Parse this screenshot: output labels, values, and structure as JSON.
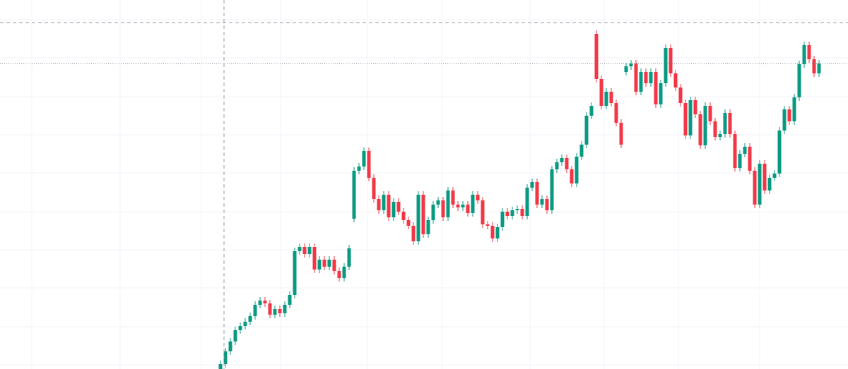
{
  "chart_data": {
    "type": "candlestick",
    "up_color": "#089981",
    "down_color": "#f23645",
    "ylim": [
      7.7,
      60
    ],
    "open": [
      7.7,
      8.4,
      10.2,
      11.6,
      13.2,
      13.8,
      14.4,
      15.2,
      16.8,
      17.4,
      17.0,
      15.4,
      16.2,
      15.6,
      16.8,
      18.2,
      24.4,
      25.0,
      24.0,
      25.0,
      21.8,
      23.2,
      22.2,
      23.2,
      21.6,
      20.6,
      22.2,
      29.0,
      35.8,
      36.4,
      38.6,
      34.8,
      31.8,
      30.2,
      32.4,
      29.2,
      31.4,
      30.0,
      28.8,
      28.0,
      25.8,
      32.4,
      26.8,
      28.8,
      31.0,
      31.6,
      29.2,
      33.0,
      31.0,
      30.6,
      31.0,
      29.8,
      32.4,
      31.6,
      28.2,
      28.0,
      26.2,
      27.8,
      30.0,
      29.4,
      30.2,
      30.4,
      29.4,
      33.4,
      34.2,
      31.0,
      31.8,
      30.2,
      36.0,
      37.0,
      37.6,
      36.0,
      34.0,
      37.8,
      39.5,
      43.6,
      55.2,
      48.8,
      45.0,
      47.0,
      45.4,
      42.6,
      49.8,
      50.6,
      51.0,
      47.0,
      49.8,
      48.2,
      49.8,
      45.2,
      48.2,
      53.2,
      49.6,
      47.6,
      45.4,
      40.8,
      45.8,
      43.8,
      39.4,
      45.0,
      42.8,
      40.6,
      41.0,
      44.0,
      41.0,
      36.2,
      38.2,
      39.2,
      35.8,
      31.0,
      36.8,
      33.0,
      34.8,
      35.4,
      41.5,
      44.5,
      42.8,
      46.2,
      50.9,
      53.6,
      51.6,
      49.6
    ],
    "high": [
      8.9,
      10.7,
      12.1,
      13.7,
      14.3,
      14.9,
      15.7,
      17.3,
      17.9,
      17.9,
      17.5,
      16.7,
      16.7,
      17.3,
      18.7,
      24.9,
      25.5,
      25.5,
      25.5,
      25.5,
      23.7,
      23.7,
      23.7,
      23.7,
      22.1,
      22.7,
      25.3,
      36.3,
      36.9,
      39.1,
      39.1,
      35.3,
      32.3,
      32.9,
      32.9,
      31.9,
      31.9,
      30.5,
      29.3,
      28.5,
      32.9,
      32.9,
      29.3,
      31.5,
      32.1,
      32.1,
      33.5,
      33.5,
      31.5,
      31.5,
      31.5,
      32.9,
      32.9,
      32.1,
      28.7,
      28.5,
      28.3,
      30.5,
      30.5,
      30.7,
      30.9,
      30.9,
      33.9,
      34.7,
      34.7,
      32.3,
      32.3,
      36.5,
      37.5,
      38.1,
      38.1,
      36.5,
      38.3,
      40.0,
      44.1,
      45.5,
      55.7,
      49.3,
      47.5,
      47.5,
      45.9,
      43.1,
      51.1,
      51.5,
      51.5,
      50.3,
      50.3,
      50.3,
      50.3,
      48.7,
      53.7,
      53.7,
      50.1,
      48.1,
      45.9,
      46.3,
      46.3,
      44.3,
      45.5,
      45.5,
      43.3,
      41.5,
      44.5,
      44.5,
      41.5,
      38.7,
      39.7,
      39.7,
      36.3,
      37.3,
      37.3,
      35.3,
      35.9,
      42.0,
      45.0,
      45.0,
      46.7,
      51.4,
      54.1,
      54.1,
      52.1,
      51.5
    ],
    "low": [
      7.2,
      7.9,
      9.7,
      11.1,
      12.7,
      13.3,
      13.9,
      14.7,
      16.3,
      16.5,
      14.9,
      14.9,
      15.1,
      15.1,
      16.3,
      17.7,
      23.9,
      23.5,
      23.5,
      21.3,
      21.3,
      21.7,
      21.7,
      21.1,
      20.1,
      20.1,
      21.7,
      28.5,
      35.3,
      35.9,
      34.3,
      31.3,
      29.7,
      29.7,
      28.7,
      28.7,
      29.5,
      28.3,
      27.5,
      25.3,
      25.3,
      26.3,
      26.3,
      28.3,
      30.5,
      28.7,
      28.7,
      30.5,
      30.1,
      30.1,
      29.3,
      29.3,
      31.1,
      27.7,
      27.5,
      25.7,
      25.7,
      27.3,
      28.9,
      28.9,
      29.7,
      28.9,
      28.9,
      32.9,
      30.5,
      30.5,
      29.7,
      29.7,
      35.5,
      36.5,
      35.5,
      33.5,
      33.5,
      37.3,
      39.0,
      43.1,
      48.3,
      44.5,
      44.5,
      44.9,
      42.1,
      39.0,
      49.3,
      50.1,
      46.5,
      46.5,
      47.7,
      47.7,
      44.7,
      44.7,
      47.7,
      49.1,
      47.1,
      44.9,
      40.3,
      40.3,
      43.3,
      38.9,
      38.9,
      42.3,
      40.1,
      40.1,
      40.5,
      40.5,
      35.7,
      35.7,
      37.7,
      35.3,
      30.5,
      30.5,
      32.5,
      32.5,
      34.3,
      34.9,
      41.0,
      42.3,
      42.3,
      45.7,
      50.4,
      51.1,
      49.1,
      49.1
    ],
    "close": [
      8.4,
      10.2,
      11.6,
      13.2,
      13.8,
      14.4,
      15.2,
      16.8,
      17.4,
      17.0,
      15.4,
      16.2,
      15.6,
      16.8,
      18.2,
      24.4,
      25.0,
      24.0,
      25.0,
      21.8,
      23.2,
      22.2,
      23.2,
      21.6,
      20.6,
      22.2,
      24.8,
      35.8,
      36.4,
      38.6,
      34.8,
      31.8,
      30.2,
      32.4,
      29.2,
      31.4,
      30.0,
      28.8,
      28.0,
      25.8,
      32.4,
      26.8,
      28.8,
      31.0,
      31.6,
      29.2,
      33.0,
      31.0,
      30.6,
      31.0,
      29.8,
      32.4,
      31.6,
      28.2,
      28.0,
      26.2,
      27.8,
      30.0,
      29.4,
      30.2,
      30.4,
      29.4,
      33.4,
      34.2,
      31.0,
      31.8,
      30.2,
      36.0,
      37.0,
      37.6,
      36.0,
      34.0,
      37.8,
      39.5,
      43.6,
      45.0,
      48.8,
      45.0,
      47.0,
      45.4,
      42.6,
      39.5,
      50.6,
      51.0,
      47.0,
      49.8,
      48.2,
      49.8,
      45.2,
      48.2,
      53.2,
      49.6,
      47.6,
      45.4,
      40.8,
      45.8,
      43.8,
      39.4,
      45.0,
      42.8,
      40.6,
      41.0,
      44.0,
      41.0,
      36.2,
      38.2,
      39.2,
      35.8,
      31.0,
      36.8,
      33.0,
      34.8,
      35.4,
      41.5,
      44.5,
      42.8,
      46.2,
      50.9,
      53.6,
      51.6,
      49.6,
      51.0
    ]
  }
}
